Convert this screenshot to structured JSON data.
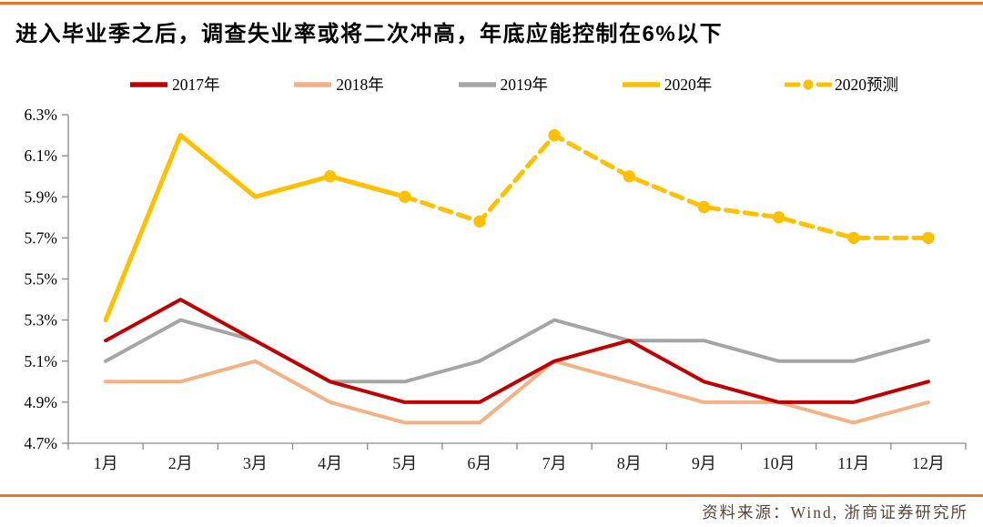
{
  "page": {
    "title": "进入毕业季之后，调查失业率或将二次冲高，年底应能控制在6%以下",
    "source_note": "资料来源：Wind, 浙商证券研究所",
    "accent_color": "#ED7420",
    "source_text_color": "#55453C"
  },
  "chart_data": {
    "type": "line",
    "title": "进入毕业季之后，调查失业率或将二次冲高，年底应能控制在6%以下",
    "categories": [
      "1月",
      "2月",
      "3月",
      "4月",
      "5月",
      "6月",
      "7月",
      "8月",
      "9月",
      "10月",
      "11月",
      "12月"
    ],
    "ylim": [
      4.7,
      6.3
    ],
    "ytick_step": 0.2,
    "ytick_labels": [
      "4.7%",
      "4.9%",
      "5.1%",
      "5.3%",
      "5.5%",
      "5.7%",
      "5.9%",
      "6.1%",
      "6.3%"
    ],
    "xlabel": "",
    "ylabel": "",
    "grid": false,
    "legend_position": "top",
    "axis_color": "#8a8a8a",
    "series": [
      {
        "name": "2017年",
        "color": "#C00000",
        "style": "solid",
        "width": 4,
        "z": 3,
        "values": [
          5.2,
          5.4,
          5.2,
          5.0,
          4.9,
          4.9,
          5.1,
          5.2,
          5.0,
          4.9,
          4.9,
          5.0
        ]
      },
      {
        "name": "2018年",
        "color": "#F4B183",
        "style": "solid",
        "width": 4,
        "z": 2,
        "values": [
          5.0,
          5.0,
          5.1,
          4.9,
          4.8,
          4.8,
          5.1,
          5.0,
          4.9,
          4.9,
          4.8,
          4.9
        ]
      },
      {
        "name": "2019年",
        "color": "#A5A5A5",
        "style": "solid",
        "width": 4,
        "z": 1,
        "values": [
          5.1,
          5.3,
          5.2,
          5.0,
          5.0,
          5.1,
          5.3,
          5.2,
          5.2,
          5.1,
          5.1,
          5.2
        ]
      },
      {
        "name": "2020年",
        "color": "#FFC000",
        "style": "solid",
        "width": 5,
        "z": 4,
        "values": [
          5.3,
          6.2,
          5.9,
          6.0,
          5.9,
          null,
          null,
          null,
          null,
          null,
          null,
          null
        ]
      },
      {
        "name": "2020预测",
        "color": "#FFC000",
        "style": "dashed",
        "width": 5,
        "z": 5,
        "marker": "circle",
        "values": [
          null,
          null,
          null,
          6.0,
          5.9,
          5.78,
          6.2,
          6.0,
          5.85,
          5.8,
          5.7,
          5.7
        ]
      }
    ]
  }
}
